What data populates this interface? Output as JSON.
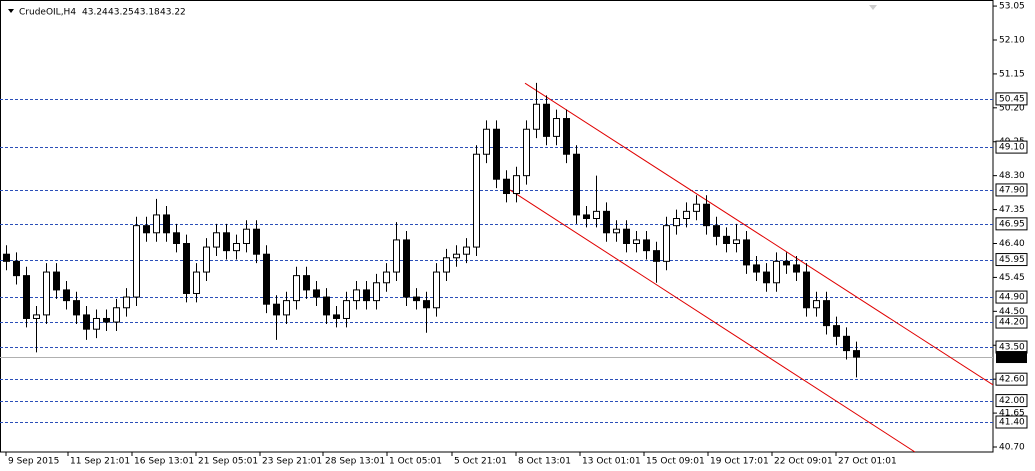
{
  "chart_data": {
    "type": "candlestick",
    "symbol": "CrudeOIL,H4",
    "ohlc": [
      43.24,
      43.25,
      43.18,
      43.22
    ],
    "open": [
      46.1,
      45.9,
      45.5,
      44.3,
      44.4,
      45.6,
      45.1,
      44.8,
      44.4,
      44.0,
      44.3,
      44.2,
      44.6,
      44.9,
      46.9,
      46.7,
      47.2,
      46.7,
      46.4,
      45.0,
      45.6,
      46.3,
      46.7,
      46.2,
      46.4,
      46.8,
      46.1,
      44.7,
      44.4,
      44.8,
      45.5,
      45.1,
      44.9,
      44.4,
      44.3,
      44.8,
      45.1,
      44.8,
      45.3,
      45.6,
      46.5,
      44.9,
      44.8,
      44.6,
      45.6,
      46.0,
      46.1,
      46.3,
      48.9,
      49.6,
      48.2,
      47.8,
      48.3,
      49.6,
      50.3,
      49.4,
      49.9,
      48.9,
      47.2,
      47.1,
      47.3,
      46.7,
      46.8,
      46.4,
      46.5,
      46.2,
      45.9,
      46.9,
      47.1,
      47.3,
      47.5,
      46.9,
      46.6,
      46.4,
      46.5,
      45.8,
      45.6,
      45.3,
      45.9,
      45.8,
      45.6,
      44.6,
      44.8,
      44.1,
      43.8,
      43.4
    ],
    "high": [
      46.35,
      46.15,
      45.75,
      44.65,
      45.85,
      45.85,
      45.35,
      45.05,
      44.65,
      44.55,
      44.55,
      44.85,
      45.15,
      47.15,
      47.15,
      47.65,
      47.45,
      46.95,
      46.65,
      45.85,
      46.55,
      46.95,
      46.95,
      46.65,
      47.05,
      47.05,
      46.35,
      44.95,
      45.05,
      45.75,
      45.75,
      45.35,
      45.15,
      44.65,
      45.05,
      45.35,
      45.35,
      45.55,
      45.85,
      47.0,
      46.75,
      45.15,
      45.05,
      45.85,
      46.25,
      46.35,
      46.55,
      49.15,
      49.85,
      49.85,
      48.45,
      48.55,
      49.85,
      50.9,
      50.55,
      50.15,
      50.15,
      49.15,
      47.45,
      48.3,
      47.55,
      47.05,
      47.05,
      46.75,
      46.75,
      46.45,
      47.15,
      47.35,
      47.55,
      47.75,
      47.75,
      47.15,
      46.85,
      46.95,
      46.75,
      46.05,
      45.85,
      46.15,
      46.15,
      46.05,
      45.85,
      45.05,
      45.05,
      44.35,
      44.05,
      43.65
    ],
    "low": [
      45.65,
      45.25,
      44.05,
      43.35,
      44.15,
      44.85,
      44.55,
      44.15,
      43.7,
      43.75,
      43.95,
      43.95,
      44.35,
      44.65,
      46.45,
      46.45,
      46.45,
      46.15,
      44.75,
      44.75,
      45.35,
      46.05,
      45.95,
      45.95,
      46.15,
      45.85,
      44.45,
      43.7,
      44.15,
      44.55,
      44.85,
      44.65,
      44.15,
      44.05,
      44.05,
      44.55,
      44.55,
      44.55,
      45.05,
      45.35,
      44.65,
      44.55,
      43.9,
      44.35,
      45.35,
      45.75,
      45.85,
      46.05,
      48.65,
      47.95,
      47.55,
      47.55,
      48.05,
      49.35,
      49.15,
      49.15,
      48.65,
      46.95,
      46.85,
      46.85,
      46.45,
      46.45,
      46.15,
      46.15,
      45.95,
      45.3,
      45.65,
      46.65,
      46.85,
      47.05,
      46.65,
      46.35,
      46.15,
      46.15,
      45.55,
      45.35,
      45.05,
      45.05,
      45.55,
      45.35,
      44.35,
      44.35,
      43.85,
      43.55,
      43.15,
      42.65
    ],
    "close": [
      45.9,
      45.5,
      44.3,
      44.4,
      45.6,
      45.1,
      44.8,
      44.4,
      44.0,
      44.3,
      44.2,
      44.6,
      44.9,
      46.9,
      46.7,
      47.2,
      46.7,
      46.4,
      45.0,
      45.6,
      46.3,
      46.7,
      46.2,
      46.4,
      46.8,
      46.1,
      44.7,
      44.4,
      44.8,
      45.5,
      45.1,
      44.9,
      44.4,
      44.3,
      44.8,
      45.1,
      44.8,
      45.3,
      45.6,
      46.5,
      44.9,
      44.8,
      44.6,
      45.6,
      46.0,
      46.1,
      46.3,
      48.9,
      49.6,
      48.2,
      47.8,
      48.3,
      49.6,
      50.3,
      49.4,
      49.9,
      48.9,
      47.2,
      47.1,
      47.3,
      46.7,
      46.8,
      46.4,
      46.5,
      46.2,
      45.9,
      46.9,
      47.1,
      47.3,
      47.5,
      46.9,
      46.6,
      46.4,
      46.5,
      45.8,
      45.6,
      45.3,
      45.9,
      45.8,
      45.6,
      44.6,
      44.8,
      44.1,
      43.8,
      43.4,
      43.22
    ],
    "up_color": "#ffffff",
    "down_color": "#000000",
    "wick_color": "#000000",
    "xticks": [
      {
        "value": 0,
        "label": "9 Sep 2015"
      },
      {
        "value": 6.2,
        "label": "11 Sep 21:01"
      },
      {
        "value": 12.6,
        "label": "16 Sep 13:01"
      },
      {
        "value": 19,
        "label": "21 Sep 05:01"
      },
      {
        "value": 25.4,
        "label": "23 Sep 21:01"
      },
      {
        "value": 31.7,
        "label": "28 Sep 13:01"
      },
      {
        "value": 38.1,
        "label": "1 Oct 05:01"
      },
      {
        "value": 44.6,
        "label": "5 Oct 21:01"
      },
      {
        "value": 51,
        "label": "8 Oct 13:01"
      },
      {
        "value": 57.4,
        "label": "13 Oct 01:01"
      },
      {
        "value": 63.8,
        "label": "15 Oct 09:01"
      },
      {
        "value": 70.2,
        "label": "19 Oct 17:01"
      },
      {
        "value": 76.6,
        "label": "22 Oct 09:01"
      },
      {
        "value": 83,
        "label": "27 Oct 01:01"
      }
    ],
    "xlim": [
      -0.6,
      98.7
    ],
    "ylim": [
      40.56,
      53.22
    ],
    "yticks": [
      53.05,
      {
        "value": 52.1,
        "label": "52.10"
      },
      51.15,
      {
        "value": 50.2,
        "label": "50.20"
      },
      49.25,
      {
        "value": 48.3,
        "label": "48.30"
      },
      47.35,
      {
        "value": 46.4,
        "label": "46.40"
      },
      45.45,
      {
        "value": 44.5,
        "label": "44.50"
      },
      43.55,
      {
        "value": 42.6,
        "label": "42.60"
      },
      41.65,
      {
        "value": 40.7,
        "label": "40.70"
      }
    ],
    "levels": [
      50.45,
      {
        "value": 49.1,
        "label": "49.10"
      },
      {
        "value": 47.9,
        "label": "47.90"
      },
      46.95,
      45.95,
      {
        "value": 44.9,
        "label": "44.90"
      },
      {
        "value": 44.2,
        "label": "44.20"
      },
      {
        "value": 43.5,
        "label": "43.50"
      },
      {
        "value": 42.6,
        "label": "42.60"
      },
      {
        "value": 42.0,
        "label": "42.00"
      },
      {
        "value": 41.4,
        "label": "41.40"
      }
    ],
    "level_color": "#2b4fb8",
    "current_price": 43.22,
    "trendline_color": "#e00000",
    "trendlines": [
      {
        "x": [
          51.9,
          98.7
        ],
        "y": [
          50.89,
          42.44
        ]
      },
      {
        "x": [
          50.4,
          90.9
        ],
        "y": [
          47.9,
          40.56
        ]
      }
    ]
  }
}
